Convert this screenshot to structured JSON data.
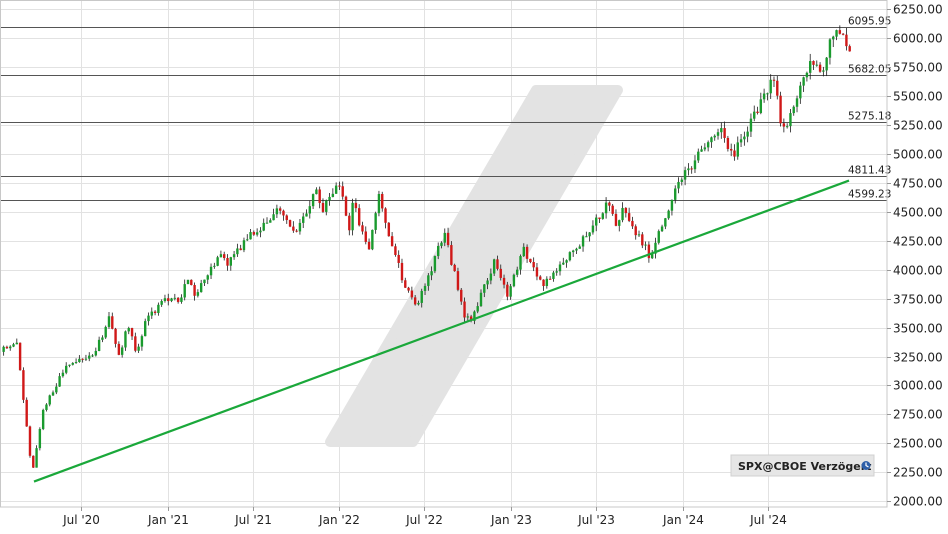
{
  "chart_data": {
    "type": "candlestick",
    "symbol": "SPX",
    "source_label": "SPX@CBOE Verzögert",
    "source_icon": "clock-icon",
    "y_axis": {
      "range": [
        1950,
        6330
      ],
      "ticks": [
        2000,
        2250,
        2500,
        2750,
        3000,
        3250,
        3500,
        3750,
        4000,
        4250,
        4500,
        4750,
        5000,
        5250,
        5500,
        5750,
        6000,
        6250
      ],
      "tick_labels": [
        "2000.00",
        "2250.00",
        "2500.00",
        "2750.00",
        "3000.00",
        "3250.00",
        "3500.00",
        "3750.00",
        "4000.00",
        "4250.00",
        "4500.00",
        "4750.00",
        "5000.00",
        "5250.00",
        "5500.00",
        "5750.00",
        "6000.00",
        "6250.00"
      ]
    },
    "x_axis": {
      "range": [
        "2020-01-15",
        "2024-12-20"
      ],
      "ticks": [
        "2020-07-01",
        "2021-01-01",
        "2021-07-01",
        "2022-01-01",
        "2022-07-01",
        "2023-01-01",
        "2023-07-01",
        "2024-01-01",
        "2024-07-01"
      ],
      "tick_labels": [
        "Jul '20",
        "Jan '21",
        "Jul '21",
        "Jan '22",
        "Jul '22",
        "Jan '23",
        "Jul '23",
        "Jan '24",
        "Jul '24"
      ]
    },
    "horizontal_levels": [
      {
        "value": 6095.95,
        "label": "6095.95"
      },
      {
        "value": 5682.05,
        "label": "5682.05"
      },
      {
        "value": 5275.18,
        "label": "5275.18"
      },
      {
        "value": 4811.43,
        "label": "4811.43"
      },
      {
        "value": 4599.23,
        "label": "4599.23"
      }
    ],
    "trendline": {
      "points": [
        [
          "2020-03-23",
          2170
        ],
        [
          "2024-12-20",
          4770
        ]
      ],
      "color": "#1aa83a"
    },
    "anchors": [
      [
        "2020-01-15",
        3290
      ],
      [
        "2020-02-19",
        3380
      ],
      [
        "2020-03-23",
        2240
      ],
      [
        "2020-04-15",
        2800
      ],
      [
        "2020-06-08",
        3200
      ],
      [
        "2020-07-31",
        3270
      ],
      [
        "2020-09-02",
        3570
      ],
      [
        "2020-09-24",
        3240
      ],
      [
        "2020-10-12",
        3520
      ],
      [
        "2020-10-30",
        3270
      ],
      [
        "2020-11-20",
        3560
      ],
      [
        "2020-12-31",
        3756
      ],
      [
        "2021-01-29",
        3714
      ],
      [
        "2021-02-12",
        3934
      ],
      [
        "2021-03-04",
        3768
      ],
      [
        "2021-04-30",
        4181
      ],
      [
        "2021-05-12",
        4063
      ],
      [
        "2021-06-30",
        4297
      ],
      [
        "2021-07-30",
        4395
      ],
      [
        "2021-09-02",
        4537
      ],
      [
        "2021-10-04",
        4300
      ],
      [
        "2021-11-18",
        4704
      ],
      [
        "2021-12-01",
        4513
      ],
      [
        "2022-01-03",
        4796
      ],
      [
        "2022-01-27",
        4326
      ],
      [
        "2022-02-02",
        4589
      ],
      [
        "2022-03-08",
        4170
      ],
      [
        "2022-03-29",
        4631
      ],
      [
        "2022-05-20",
        3901
      ],
      [
        "2022-06-16",
        3666
      ],
      [
        "2022-08-16",
        4305
      ],
      [
        "2022-09-30",
        3585
      ],
      [
        "2022-10-12",
        3577
      ],
      [
        "2022-12-01",
        4076
      ],
      [
        "2022-12-28",
        3783
      ],
      [
        "2023-02-02",
        4179
      ],
      [
        "2023-03-13",
        3855
      ],
      [
        "2023-05-26",
        4205
      ],
      [
        "2023-07-31",
        4588
      ],
      [
        "2023-08-18",
        4369
      ],
      [
        "2023-09-01",
        4515
      ],
      [
        "2023-10-27",
        4117
      ],
      [
        "2023-12-29",
        4770
      ],
      [
        "2024-03-28",
        5254
      ],
      [
        "2024-04-19",
        4967
      ],
      [
        "2024-05-31",
        5277
      ],
      [
        "2024-07-16",
        5667
      ],
      [
        "2024-08-05",
        5186
      ],
      [
        "2024-09-30",
        5762
      ],
      [
        "2024-10-31",
        5705
      ],
      [
        "2024-11-11",
        6001
      ],
      [
        "2024-12-06",
        6090
      ],
      [
        "2024-12-20",
        5930
      ]
    ]
  }
}
